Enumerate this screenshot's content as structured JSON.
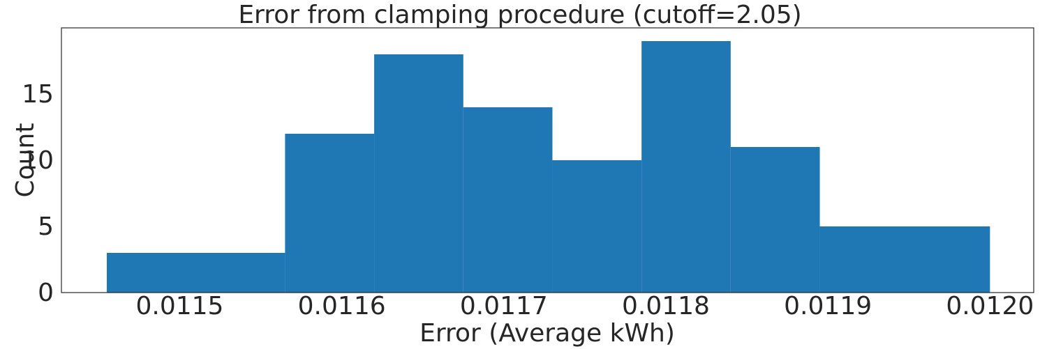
{
  "chart_data": {
    "type": "bar",
    "title": "Error from clamping procedure (cutoff=2.05)",
    "xlabel": "Error (Average kWh)",
    "ylabel": "Count",
    "bins": [
      {
        "start": 0.011455,
        "end": 0.011565,
        "count": 3
      },
      {
        "start": 0.011565,
        "end": 0.01162,
        "count": 12
      },
      {
        "start": 0.01162,
        "end": 0.011675,
        "count": 18
      },
      {
        "start": 0.011675,
        "end": 0.01173,
        "count": 14
      },
      {
        "start": 0.01173,
        "end": 0.011785,
        "count": 10
      },
      {
        "start": 0.011785,
        "end": 0.01184,
        "count": 19
      },
      {
        "start": 0.01184,
        "end": 0.011895,
        "count": 11
      },
      {
        "start": 0.011895,
        "end": 0.012,
        "count": 5
      }
    ],
    "xticks": [
      {
        "value": 0.0115,
        "label": "0.0115"
      },
      {
        "value": 0.0116,
        "label": "0.0116"
      },
      {
        "value": 0.0117,
        "label": "0.0117"
      },
      {
        "value": 0.0118,
        "label": "0.0118"
      },
      {
        "value": 0.0119,
        "label": "0.0119"
      },
      {
        "value": 0.012,
        "label": "0.0120"
      }
    ],
    "yticks": [
      {
        "value": 0,
        "label": "0"
      },
      {
        "value": 5,
        "label": "5"
      },
      {
        "value": 10,
        "label": "10"
      },
      {
        "value": 15,
        "label": "15"
      }
    ],
    "xlim": [
      0.011427,
      0.012027
    ],
    "ylim": [
      0,
      20
    ],
    "grid": false,
    "bar_color": "#1f77b4"
  }
}
